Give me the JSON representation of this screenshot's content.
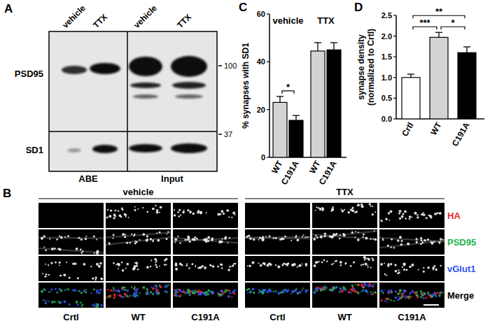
{
  "panel_labels": [
    "A",
    "B",
    "C",
    "D"
  ],
  "blot": {
    "lane_labels": [
      "vehicle",
      "TTX",
      "vehicle",
      "TTX"
    ],
    "row_labels": [
      "PSD95",
      "SD1"
    ],
    "section_labels": [
      "ABE",
      "Input"
    ],
    "size_markers": [
      100,
      37
    ]
  },
  "images": {
    "group_labels": [
      "vehicle",
      "TTX"
    ],
    "channels": [
      {
        "name": "HA",
        "color": "#e8262a"
      },
      {
        "name": "PSD95",
        "color": "#22b14c"
      },
      {
        "name": "vGlut1",
        "color": "#3050f0"
      },
      {
        "name": "Merge",
        "color": "#000000"
      }
    ],
    "column_labels": [
      "Crtl",
      "WT",
      "C191A",
      "Crtl",
      "WT",
      "C191A"
    ]
  },
  "chart_data": [
    {
      "type": "bar",
      "categories": [
        "WT",
        "C191A",
        "WT",
        "C191A"
      ],
      "group_labels": [
        "vehicle",
        "TTX"
      ],
      "values": [
        23,
        15.5,
        44.5,
        45
      ],
      "errors": [
        2.5,
        2,
        3.5,
        3
      ],
      "colors": [
        "#d3d3d3",
        "#000000",
        "#d3d3d3",
        "#000000"
      ],
      "y_label": "% synapses with SD1",
      "ylim": [
        0,
        60
      ],
      "yticks": [
        0,
        20,
        40,
        60
      ],
      "significance": [
        {
          "between": [
            0,
            1
          ],
          "label": "*"
        }
      ]
    },
    {
      "type": "bar",
      "categories": [
        "Crtl",
        "WT",
        "C191A"
      ],
      "values": [
        1.0,
        1.97,
        1.6
      ],
      "errors": [
        0.08,
        0.12,
        0.14
      ],
      "colors": [
        "#ffffff",
        "#d3d3d3",
        "#000000"
      ],
      "y_label": [
        "synapse density",
        "(normalized to Crtl)"
      ],
      "ylim": [
        0,
        2.5
      ],
      "yticks": [
        {
          "value": 0,
          "label": "0.0"
        },
        {
          "value": 0.5,
          "label": "0.5"
        },
        {
          "value": 1,
          "label": "1.0"
        },
        {
          "value": 1.5,
          "label": "1.5"
        },
        {
          "value": 2,
          "label": "2.0"
        },
        {
          "value": 2.5,
          "label": "2.5"
        }
      ],
      "significance": [
        {
          "between": [
            0,
            1
          ],
          "label": "***"
        },
        {
          "between": [
            0,
            2
          ],
          "label": "**"
        },
        {
          "between": [
            1,
            2
          ],
          "label": "*"
        }
      ]
    }
  ]
}
